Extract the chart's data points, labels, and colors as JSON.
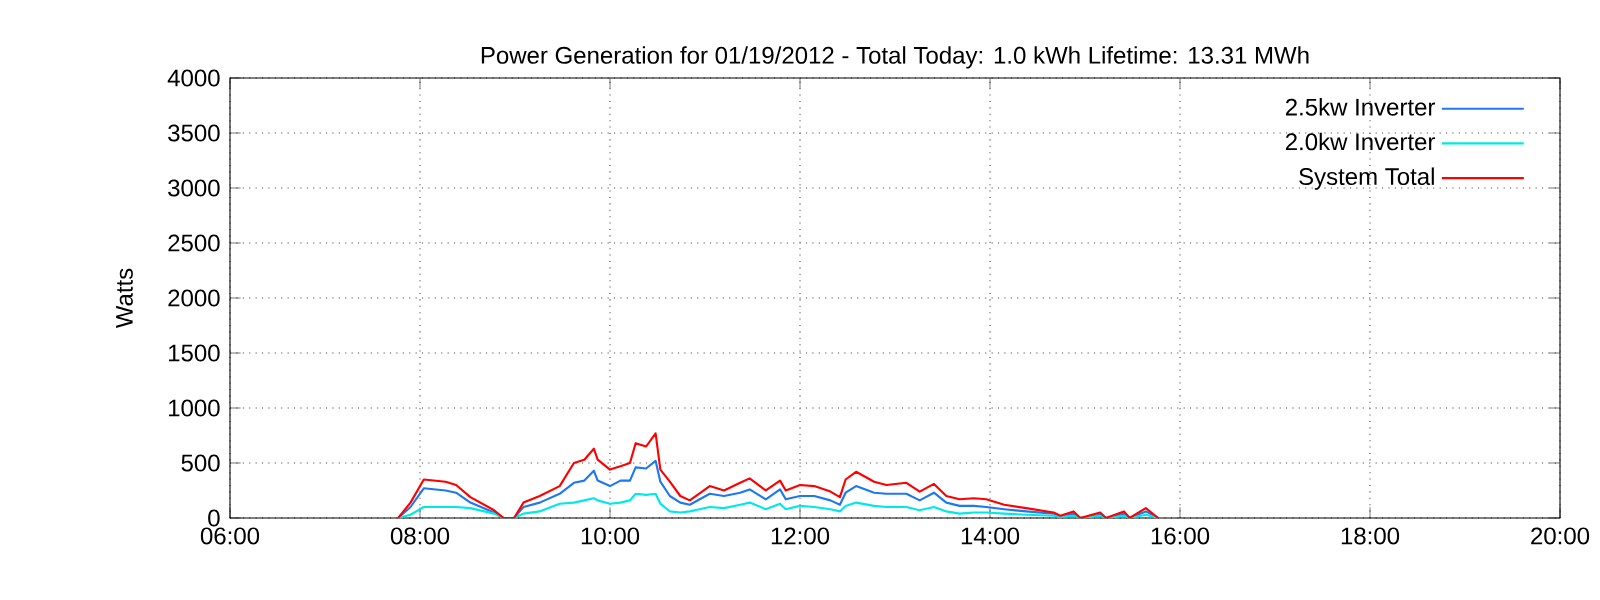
{
  "chart_data": {
    "type": "line",
    "title": "Power Generation for 01/19/2012 - Total Today: 1.0 kWh   Lifetime: 13.31 MWh",
    "ylabel": "Watts",
    "x": [
      7.77,
      7.9,
      8.04,
      8.27,
      8.38,
      8.53,
      8.78,
      8.88,
      8.99,
      9.09,
      9.26,
      9.47,
      9.62,
      9.73,
      9.83,
      9.87,
      10.0,
      10.11,
      10.21,
      10.27,
      10.38,
      10.48,
      10.53,
      10.63,
      10.74,
      10.84,
      11.05,
      11.2,
      11.37,
      11.47,
      11.64,
      11.79,
      11.85,
      12.0,
      12.15,
      12.32,
      12.42,
      12.48,
      12.59,
      12.78,
      12.91,
      13.12,
      13.26,
      13.41,
      13.54,
      13.68,
      13.83,
      13.96,
      14.15,
      14.38,
      14.67,
      14.74,
      14.88,
      14.95,
      15.16,
      15.22,
      15.41,
      15.47,
      15.64,
      15.77
    ],
    "series": [
      {
        "name": "2.5kw Inverter",
        "color": "#1e78f0",
        "values": [
          0,
          100,
          270,
          250,
          230,
          140,
          50,
          0,
          0,
          100,
          140,
          220,
          320,
          340,
          430,
          340,
          290,
          340,
          340,
          460,
          450,
          520,
          330,
          200,
          140,
          120,
          220,
          200,
          230,
          260,
          170,
          260,
          170,
          200,
          200,
          160,
          120,
          230,
          290,
          230,
          220,
          220,
          160,
          230,
          140,
          110,
          110,
          100,
          80,
          60,
          40,
          10,
          40,
          0,
          30,
          0,
          40,
          0,
          60,
          0
        ]
      },
      {
        "name": "2.0kw Inverter",
        "color": "#00e8e8",
        "values": [
          0,
          30,
          100,
          100,
          100,
          90,
          40,
          0,
          0,
          40,
          60,
          130,
          140,
          160,
          180,
          160,
          130,
          140,
          160,
          220,
          210,
          220,
          130,
          60,
          50,
          60,
          100,
          90,
          120,
          140,
          80,
          130,
          80,
          110,
          100,
          80,
          60,
          110,
          140,
          110,
          100,
          100,
          70,
          100,
          60,
          40,
          50,
          50,
          40,
          30,
          20,
          10,
          20,
          0,
          20,
          0,
          20,
          0,
          30,
          0
        ]
      },
      {
        "name": "System Total",
        "color": "#ff0000",
        "values": [
          0,
          140,
          350,
          330,
          300,
          190,
          70,
          0,
          0,
          140,
          200,
          290,
          500,
          530,
          630,
          530,
          440,
          470,
          500,
          680,
          650,
          770,
          440,
          330,
          200,
          160,
          290,
          250,
          320,
          360,
          250,
          340,
          250,
          300,
          290,
          240,
          190,
          350,
          420,
          330,
          300,
          320,
          240,
          310,
          200,
          170,
          180,
          170,
          120,
          90,
          50,
          20,
          60,
          0,
          50,
          0,
          60,
          0,
          90,
          0
        ]
      }
    ],
    "xlim": [
      6,
      20
    ],
    "xticks": [
      {
        "value": 6,
        "label": "06:00"
      },
      {
        "value": 8,
        "label": "08:00"
      },
      {
        "value": 10,
        "label": "10:00"
      },
      {
        "value": 12,
        "label": "12:00"
      },
      {
        "value": 14,
        "label": "14:00"
      },
      {
        "value": 16,
        "label": "16:00"
      },
      {
        "value": 18,
        "label": "18:00"
      },
      {
        "value": 20,
        "label": "20:00"
      }
    ],
    "ylim": [
      0,
      4000
    ],
    "yticks": [
      0,
      500,
      1000,
      1500,
      2000,
      2500,
      3000,
      3500,
      4000
    ],
    "grid": true,
    "legend": "top right",
    "marker": "none",
    "line_style": "solid"
  }
}
